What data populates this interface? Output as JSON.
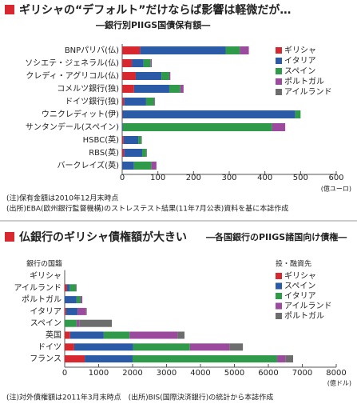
{
  "chart_data": [
    {
      "type": "bar",
      "orientation": "horizontal",
      "stacked": true,
      "title": "ギリシャの“デフォルト”だけならば影響は軽微だが…",
      "subtitle": "―銀行別PIIGS国債保有額―",
      "categories": [
        "BNPパリバ(仏)",
        "ソシエテ・ジェネラル(仏)",
        "クレディ・アグリコル(仏)",
        "コメルツ銀行(独)",
        "ドイツ銀行(独)",
        "ウニクレディット(伊)",
        "サンタンデール(スペイン)",
        "HSBC(英)",
        "RBS(英)",
        "バークレイズ(英)"
      ],
      "series": [
        {
          "name": "ギリシャ",
          "color": "#d7282f",
          "values": [
            50,
            27,
            38,
            33,
            5,
            1,
            0,
            4,
            5,
            0
          ]
        },
        {
          "name": "イタリア",
          "color": "#2b5aa6",
          "values": [
            240,
            33,
            72,
            99,
            62,
            484,
            2,
            41,
            51,
            33
          ]
        },
        {
          "name": "スペイン",
          "color": "#2f9a4a",
          "values": [
            40,
            20,
            22,
            31,
            23,
            15,
            418,
            8,
            11,
            49
          ]
        },
        {
          "name": "ポルトガル",
          "color": "#9b4a9e",
          "values": [
            25,
            3,
            3,
            9,
            2,
            0,
            37,
            0,
            0,
            14
          ]
        },
        {
          "name": "アイルランド",
          "color": "#6d6d6d",
          "values": [
            0,
            0,
            0,
            0,
            0,
            0,
            0,
            2,
            2,
            0
          ]
        }
      ],
      "xlim": [
        0,
        600
      ],
      "xticks": [
        0,
        100,
        200,
        300,
        400,
        500,
        600
      ],
      "unit": "(億ユーロ)",
      "notes": [
        "(注)保有金額は2010年12月末時点",
        "(出所)EBA(欧州銀行監督機構)のストレステスト結果(11年7月公表)資料を基に本誌作成"
      ]
    },
    {
      "type": "bar",
      "orientation": "horizontal",
      "stacked": true,
      "title": "仏銀行のギリシャ債権額が大きい",
      "subtitle": "―各国銀行のPIIGS諸国向け債権―",
      "category_axis_label": "銀行の国籍",
      "legend_title": "投・融資先",
      "categories": [
        "ギリシャ",
        "アイルランド",
        "ポルトガル",
        "イタリア",
        "スペイン",
        "英国",
        "ドイツ",
        "フランス"
      ],
      "series": [
        {
          "name": "ギリシャ",
          "color": "#d7282f",
          "values": [
            0,
            60,
            0,
            40,
            0,
            160,
            280,
            590
          ]
        },
        {
          "name": "スペイン",
          "color": "#2b5aa6",
          "values": [
            0,
            90,
            350,
            340,
            0,
            990,
            1740,
            1410
          ]
        },
        {
          "name": "イタリア",
          "color": "#2f9a4a",
          "values": [
            0,
            180,
            120,
            0,
            350,
            760,
            1670,
            4260
          ]
        },
        {
          "name": "アイルランド",
          "color": "#9b4a9e",
          "values": [
            0,
            0,
            50,
            250,
            80,
            1410,
            1160,
            240
          ]
        },
        {
          "name": "ポルトガル",
          "color": "#6d6d6d",
          "values": [
            0,
            20,
            0,
            20,
            960,
            210,
            400,
            230
          ]
        }
      ],
      "xlim": [
        0,
        8000
      ],
      "xticks": [
        0,
        1000,
        2000,
        3000,
        4000,
        5000,
        6000,
        7000,
        8000
      ],
      "unit": "(億ドル)",
      "notes": [
        "(注)対外債権額は2011年3月末時点　(出所)BIS(国際決済銀行)の統計から本誌作成"
      ]
    }
  ]
}
